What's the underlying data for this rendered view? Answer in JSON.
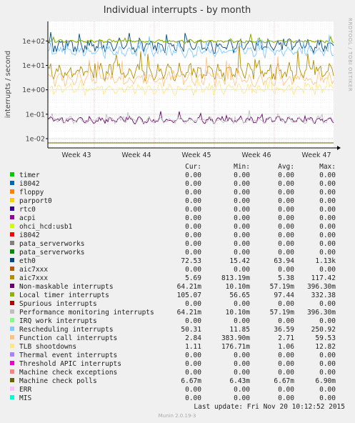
{
  "title": "Individual interrupts - by month",
  "watermark": "RRDTOOL / TOBI OETIKER",
  "footer": "Munin 2.0.19-3",
  "last_update": "Last update:  Fri Nov 20 10:12:52 2015",
  "chart_data": {
    "type": "line",
    "ylabel": "interrupts / second",
    "yscale": "log",
    "ylim": [
      0.005,
      500
    ],
    "yticks": [
      {
        "v": 100,
        "label": "1e+02"
      },
      {
        "v": 10,
        "label": "1e+01"
      },
      {
        "v": 1,
        "label": "1e+00"
      },
      {
        "v": 0.1,
        "label": "1e-01"
      },
      {
        "v": 0.01,
        "label": "1e-02"
      }
    ],
    "xticks": [
      "Week 43",
      "Week 44",
      "Week 45",
      "Week 46",
      "Week 47"
    ],
    "grid": true,
    "legend_headers": {
      "cur": "Cur:",
      "min": "Min:",
      "avg": "Avg:",
      "max": "Max:"
    },
    "series": [
      {
        "name": "timer",
        "color": "#00cc00",
        "cur": "0.00",
        "min": "0.00",
        "avg": "0.00",
        "max": "0.00"
      },
      {
        "name": "i8042",
        "color": "#0066b3",
        "cur": "0.00",
        "min": "0.00",
        "avg": "0.00",
        "max": "0.00"
      },
      {
        "name": "floppy",
        "color": "#ff8000",
        "cur": "0.00",
        "min": "0.00",
        "avg": "0.00",
        "max": "0.00"
      },
      {
        "name": "parport0",
        "color": "#ffcc00",
        "cur": "0.00",
        "min": "0.00",
        "avg": "0.00",
        "max": "0.00"
      },
      {
        "name": "rtc0",
        "color": "#330099",
        "cur": "0.00",
        "min": "0.00",
        "avg": "0.00",
        "max": "0.00"
      },
      {
        "name": "acpi",
        "color": "#990099",
        "cur": "0.00",
        "min": "0.00",
        "avg": "0.00",
        "max": "0.00"
      },
      {
        "name": "ohci_hcd:usb1",
        "color": "#ccff00",
        "cur": "0.00",
        "min": "0.00",
        "avg": "0.00",
        "max": "0.00"
      },
      {
        "name": "i8042",
        "color": "#ff0000",
        "cur": "0.00",
        "min": "0.00",
        "avg": "0.00",
        "max": "0.00"
      },
      {
        "name": "pata_serverworks",
        "color": "#808080",
        "cur": "0.00",
        "min": "0.00",
        "avg": "0.00",
        "max": "0.00"
      },
      {
        "name": "pata_serverworks",
        "color": "#008f00",
        "cur": "0.00",
        "min": "0.00",
        "avg": "0.00",
        "max": "0.00"
      },
      {
        "name": "eth0",
        "color": "#00487d",
        "cur": "72.53",
        "min": "15.42",
        "avg": "63.94",
        "max": "1.13k"
      },
      {
        "name": "aic7xxx",
        "color": "#b35a00",
        "cur": "0.00",
        "min": "0.00",
        "avg": "0.00",
        "max": "0.00"
      },
      {
        "name": "aic7xxx",
        "color": "#b38f00",
        "cur": "5.69",
        "min": "813.19m",
        "avg": "5.38",
        "max": "117.42"
      },
      {
        "name": "Non-maskable interrupts",
        "color": "#6b006b",
        "cur": "64.21m",
        "min": "10.10m",
        "avg": "57.19m",
        "max": "396.30m"
      },
      {
        "name": "Local timer interrupts",
        "color": "#8fb300",
        "cur": "105.07",
        "min": "56.65",
        "avg": "97.44",
        "max": "332.38"
      },
      {
        "name": "Spurious interrupts",
        "color": "#b30000",
        "cur": "0.00",
        "min": "0.00",
        "avg": "0.00",
        "max": "0.00"
      },
      {
        "name": "Performance monitoring interrupts",
        "color": "#bebebe",
        "cur": "64.21m",
        "min": "10.10m",
        "avg": "57.19m",
        "max": "396.30m"
      },
      {
        "name": "IRQ work interrupts",
        "color": "#80ff80",
        "cur": "0.00",
        "min": "0.00",
        "avg": "0.00",
        "max": "0.00"
      },
      {
        "name": "Rescheduling interrupts",
        "color": "#80c9ff",
        "cur": "50.31",
        "min": "11.85",
        "avg": "36.59",
        "max": "250.92"
      },
      {
        "name": "Function call interrupts",
        "color": "#ffc080",
        "cur": "2.84",
        "min": "383.90m",
        "avg": "2.71",
        "max": "59.53"
      },
      {
        "name": "TLB shootdowns",
        "color": "#ffe680",
        "cur": "1.11",
        "min": "176.71m",
        "avg": "1.06",
        "max": "12.82"
      },
      {
        "name": "Thermal event interrupts",
        "color": "#aa80ff",
        "cur": "0.00",
        "min": "0.00",
        "avg": "0.00",
        "max": "0.00"
      },
      {
        "name": "Threshold APIC interrupts",
        "color": "#ee00cc",
        "cur": "0.00",
        "min": "0.00",
        "avg": "0.00",
        "max": "0.00"
      },
      {
        "name": "Machine check exceptions",
        "color": "#ff8080",
        "cur": "0.00",
        "min": "0.00",
        "avg": "0.00",
        "max": "0.00"
      },
      {
        "name": "Machine check polls",
        "color": "#666600",
        "cur": "6.67m",
        "min": "6.43m",
        "avg": "6.67m",
        "max": "6.90m"
      },
      {
        "name": "ERR",
        "color": "#ffbfff",
        "cur": "0.00",
        "min": "0.00",
        "avg": "0.00",
        "max": "0.00"
      },
      {
        "name": "MIS",
        "color": "#00ffcc",
        "cur": "0.00",
        "min": "0.00",
        "avg": "0.00",
        "max": "0.00"
      }
    ]
  }
}
